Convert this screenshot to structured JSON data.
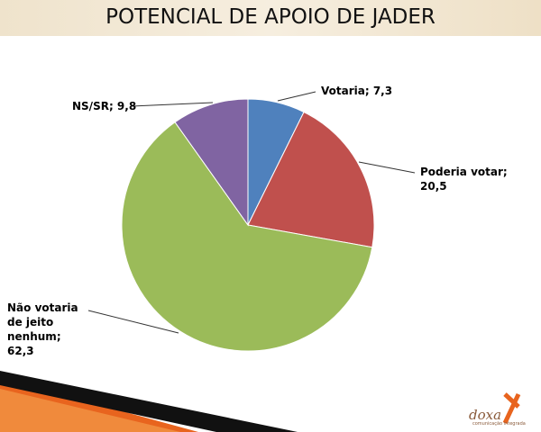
{
  "chart_data": {
    "type": "pie",
    "title": "POTENCIAL DE APOIO DE JADER",
    "categories": [
      "Votaria",
      "Poderia votar",
      "Não votaria de jeito nenhum",
      "NS/SR"
    ],
    "values": [
      7.3,
      20.5,
      62.3,
      9.8
    ],
    "value_labels": [
      "Votaria; 7,3",
      "Poderia votar; 20,5",
      "Não votaria de jeito nenhum; 62,3",
      "NS/SR; 9,8"
    ],
    "colors": [
      "#4f81bd",
      "#c0504d",
      "#9bbb59",
      "#8064a2"
    ]
  },
  "logo": {
    "name": "doxa",
    "tagline": "comunicação integrada"
  }
}
